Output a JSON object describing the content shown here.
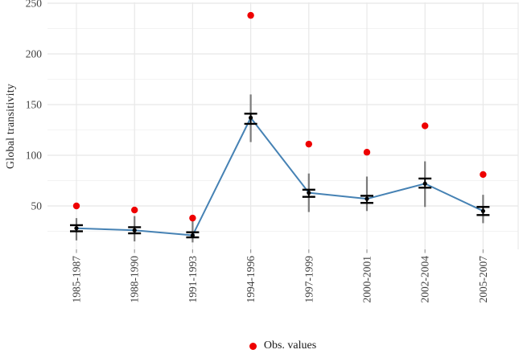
{
  "chart_data": {
    "type": "line",
    "title": "",
    "xlabel": "",
    "ylabel": "Global transitivity",
    "categories": [
      "1985-1987",
      "1988-1990",
      "1991-1993",
      "1994-1996",
      "1997-1999",
      "2000-2001",
      "2002-2004",
      "2005-2007"
    ],
    "y_ticks": [
      50,
      100,
      150,
      200,
      250
    ],
    "ylim": [
      5,
      258
    ],
    "grid": "on",
    "x_tick_rotation": 90,
    "obs_values": [
      50,
      46,
      38,
      238,
      111,
      103,
      129,
      81
    ],
    "line_values": [
      28,
      26,
      21,
      137,
      63,
      57,
      72,
      45
    ],
    "inner_error_lo": [
      25,
      23,
      19,
      131,
      59,
      53,
      68,
      41
    ],
    "inner_error_hi": [
      31,
      29,
      24,
      141,
      66,
      60,
      77,
      49
    ],
    "outer_error_lo": [
      16,
      15,
      14,
      113,
      44,
      45,
      49,
      33
    ],
    "outer_error_hi": [
      38,
      40,
      37,
      160,
      82,
      79,
      94,
      61
    ],
    "legend_position": "bottom",
    "legend": [
      {
        "label": "Obs. values",
        "marker": "circle",
        "color": "#ee0000"
      }
    ],
    "colors": {
      "obs_point": "#ee0000",
      "line": "#4682b4",
      "inner_error": "#000000",
      "outer_error": "#7b7b7b",
      "grid_major": "#e8e8e8",
      "grid_minor": "#f3f3f3",
      "axis_tick": "#9a9a9a",
      "tick_text": "#404040"
    }
  }
}
